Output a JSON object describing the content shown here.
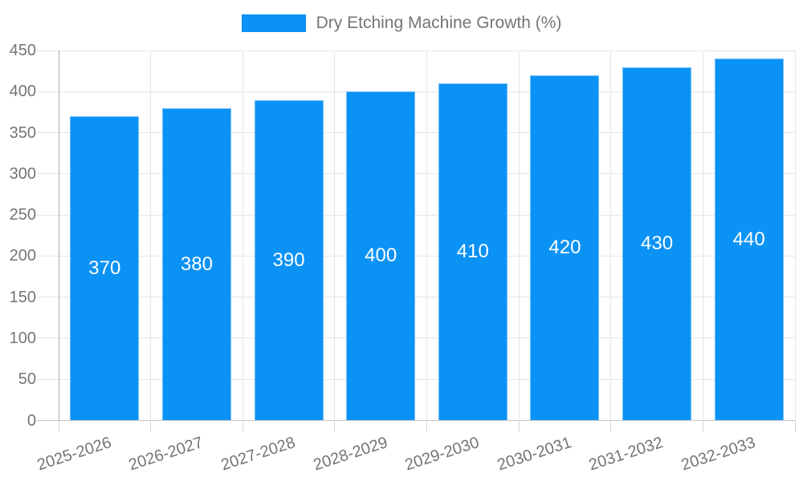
{
  "legend": {
    "items": [
      {
        "label": "Dry Etching Machine Growth (%)",
        "color": "#0b92f5"
      }
    ]
  },
  "chart_data": {
    "type": "bar",
    "title": "",
    "categories": [
      "2025-2026",
      "2026-2027",
      "2027-2028",
      "2028-2029",
      "2029-2030",
      "2030-2031",
      "2031-2032",
      "2032-2033"
    ],
    "series": [
      {
        "name": "Dry Etching Machine Growth (%)",
        "values": [
          370,
          380,
          390,
          400,
          410,
          420,
          430,
          440
        ]
      }
    ],
    "value_labels": [
      "370",
      "380",
      "390",
      "400",
      "410",
      "420",
      "430",
      "440"
    ],
    "xlabel": "",
    "ylabel": "",
    "ylim": [
      0,
      450
    ],
    "yticks": [
      0,
      50,
      100,
      150,
      200,
      250,
      300,
      350,
      400,
      450
    ],
    "grid": true,
    "legend_position": "top",
    "colors": {
      "bar_fill": "#0b92f5",
      "bar_border": "#6fbdf9",
      "value_label": "#ffffff",
      "axis_text": "#757575",
      "grid_line": "#e6e6e6",
      "y_axis_line": "#a9a9a9",
      "baseline": "#c6c6c6",
      "tick_line": "#d4d4d4"
    }
  }
}
